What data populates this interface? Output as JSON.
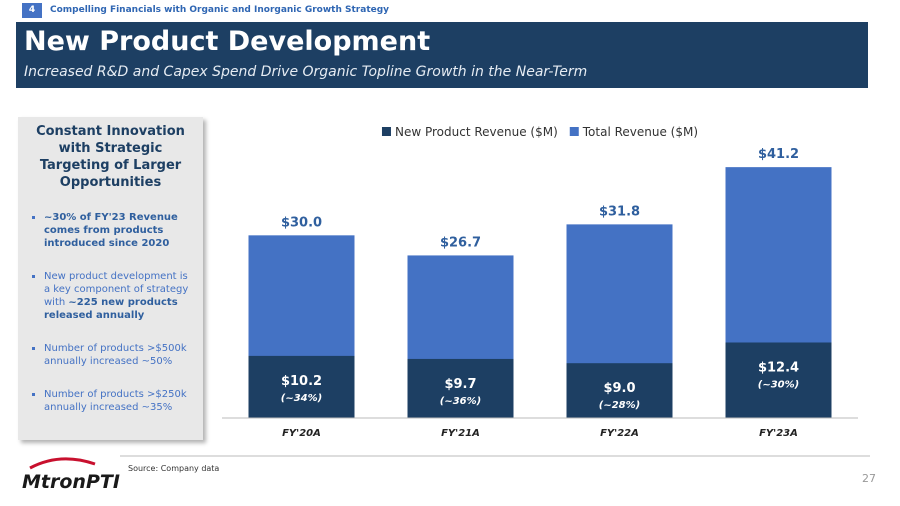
{
  "header": {
    "section_number": "4",
    "section": "Compelling Financials with Organic and Inorganic Growth Strategy",
    "title": "New Product Development",
    "subtitle": "Increased R&D and Capex Spend Drive Organic Topline Growth in the Near-Term"
  },
  "sidebar": {
    "heading": "Constant Innovation with Strategic Targeting of Larger Opportunities",
    "bullets": [
      {
        "bold": "~30% of FY'23 Revenue comes from products introduced since 2020"
      },
      {
        "text": "New product development is a key component of strategy with",
        "bold": "~225 new products released annually"
      },
      {
        "text": "Number of products >$500k annually increased ~50%"
      },
      {
        "text": "Number of products >$250k annually increased ~35%"
      }
    ]
  },
  "chart_data": {
    "type": "bar",
    "categories": [
      "FY'20A",
      "FY'21A",
      "FY'22A",
      "FY'23A"
    ],
    "series": [
      {
        "name": "New Product Revenue ($M)",
        "color": "#1d3f63",
        "values": [
          10.2,
          9.7,
          9.0,
          12.4
        ],
        "value_labels": [
          "$10.2",
          "$9.7",
          "$9.0",
          "$12.4"
        ],
        "share_labels": [
          "(~34%)",
          "(~36%)",
          "(~28%)",
          "(~30%)"
        ]
      },
      {
        "name": "Total Revenue ($M)",
        "color": "#4472c4",
        "values": [
          30.0,
          26.7,
          31.8,
          41.2
        ],
        "value_labels": [
          "$30.0",
          "$26.7",
          "$31.8",
          "$41.2"
        ]
      }
    ],
    "ylim": [
      0,
      45
    ],
    "legend": "top"
  },
  "footer": {
    "logo": "MtronPTI",
    "source": "Source: Company data",
    "page": "27"
  }
}
